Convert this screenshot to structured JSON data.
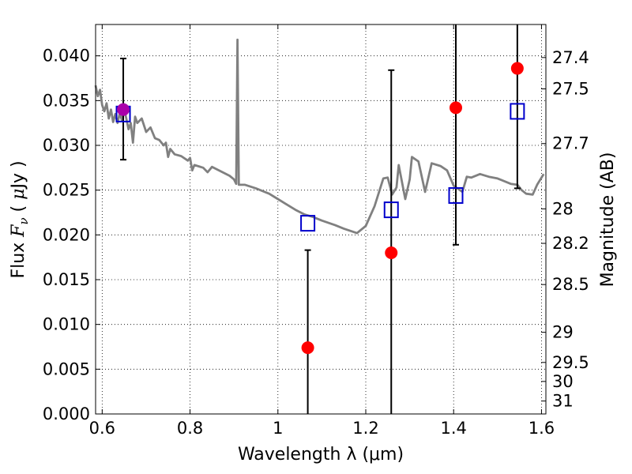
{
  "chart_data": {
    "type": "scatter",
    "xlabel": "Wavelength  λ (μm)",
    "ylabel": "Flux  F_ν  ( μJy )",
    "ylabel_parts": {
      "pre": "Flux  ",
      "F": "F",
      "nu": "ν",
      "mid": "  ( ",
      "mu": "μ",
      "post": "Jy )"
    },
    "y2label": "Magnitude (AB)",
    "xlim": [
      0.585,
      1.61
    ],
    "ylim": [
      0.0,
      0.0435
    ],
    "grid": true,
    "x_ticks": [
      {
        "value": 0.6,
        "label": "0.6"
      },
      {
        "value": 0.8,
        "label": "0.8"
      },
      {
        "value": 1.0,
        "label": "1"
      },
      {
        "value": 1.2,
        "label": "1.2"
      },
      {
        "value": 1.4,
        "label": "1.4"
      },
      {
        "value": 1.6,
        "label": "1.6"
      }
    ],
    "y_ticks": [
      {
        "value": 0.0,
        "label": "0.000"
      },
      {
        "value": 0.005,
        "label": "0.005"
      },
      {
        "value": 0.01,
        "label": "0.010"
      },
      {
        "value": 0.015,
        "label": "0.015"
      },
      {
        "value": 0.02,
        "label": "0.020"
      },
      {
        "value": 0.025,
        "label": "0.025"
      },
      {
        "value": 0.03,
        "label": "0.030"
      },
      {
        "value": 0.035,
        "label": "0.035"
      },
      {
        "value": 0.04,
        "label": "0.040"
      }
    ],
    "mag_ticks": [
      {
        "value": 27.4,
        "label": "27.4"
      },
      {
        "value": 27.5,
        "label": "27.5"
      },
      {
        "value": 27.7,
        "label": "27.7"
      },
      {
        "value": 28.0,
        "label": "28"
      },
      {
        "value": 28.2,
        "label": "28.2"
      },
      {
        "value": 28.5,
        "label": "28.5"
      },
      {
        "value": 29.0,
        "label": "29"
      },
      {
        "value": 29.5,
        "label": "29.5"
      },
      {
        "value": 30.0,
        "label": "30"
      },
      {
        "value": 31.0,
        "label": "31"
      }
    ],
    "mag_zeropoint": 23.9,
    "colors": {
      "model": "#808080",
      "observed": "#ff0000",
      "model_band": "#0000cc",
      "detection": "#aa00aa",
      "error_bar": "#000000"
    },
    "series": [
      {
        "kind": "line",
        "points": [
          [
            0.585,
            0.0367
          ],
          [
            0.59,
            0.0355
          ],
          [
            0.595,
            0.0362
          ],
          [
            0.6,
            0.0345
          ],
          [
            0.605,
            0.0338
          ],
          [
            0.61,
            0.0347
          ],
          [
            0.615,
            0.033
          ],
          [
            0.62,
            0.034
          ],
          [
            0.625,
            0.0326
          ],
          [
            0.63,
            0.0335
          ],
          [
            0.635,
            0.0325
          ],
          [
            0.64,
            0.0336
          ],
          [
            0.645,
            0.0328
          ],
          [
            0.65,
            0.0341
          ],
          [
            0.655,
            0.033
          ],
          [
            0.66,
            0.0318
          ],
          [
            0.665,
            0.0325
          ],
          [
            0.67,
            0.0303
          ],
          [
            0.675,
            0.0332
          ],
          [
            0.68,
            0.0325
          ],
          [
            0.69,
            0.033
          ],
          [
            0.7,
            0.0315
          ],
          [
            0.71,
            0.032
          ],
          [
            0.72,
            0.0308
          ],
          [
            0.73,
            0.0306
          ],
          [
            0.74,
            0.03
          ],
          [
            0.745,
            0.0303
          ],
          [
            0.75,
            0.0287
          ],
          [
            0.755,
            0.0296
          ],
          [
            0.765,
            0.029
          ],
          [
            0.78,
            0.0288
          ],
          [
            0.795,
            0.0283
          ],
          [
            0.8,
            0.0286
          ],
          [
            0.805,
            0.0272
          ],
          [
            0.81,
            0.0278
          ],
          [
            0.83,
            0.0275
          ],
          [
            0.84,
            0.027
          ],
          [
            0.85,
            0.0276
          ],
          [
            0.87,
            0.0271
          ],
          [
            0.89,
            0.0266
          ],
          [
            0.9,
            0.0262
          ],
          [
            0.905,
            0.0257
          ],
          [
            0.908,
            0.0418
          ],
          [
            0.911,
            0.0256
          ],
          [
            0.925,
            0.0256
          ],
          [
            0.95,
            0.0252
          ],
          [
            0.98,
            0.0246
          ],
          [
            1.0,
            0.024
          ],
          [
            1.02,
            0.0234
          ],
          [
            1.04,
            0.0228
          ],
          [
            1.06,
            0.0223
          ],
          [
            1.08,
            0.022
          ],
          [
            1.1,
            0.0216
          ],
          [
            1.13,
            0.0211
          ],
          [
            1.15,
            0.0207
          ],
          [
            1.18,
            0.0202
          ],
          [
            1.2,
            0.021
          ],
          [
            1.22,
            0.0232
          ],
          [
            1.24,
            0.0263
          ],
          [
            1.25,
            0.0264
          ],
          [
            1.26,
            0.0245
          ],
          [
            1.27,
            0.0253
          ],
          [
            1.275,
            0.0278
          ],
          [
            1.29,
            0.024
          ],
          [
            1.3,
            0.0262
          ],
          [
            1.305,
            0.0287
          ],
          [
            1.32,
            0.0282
          ],
          [
            1.335,
            0.0248
          ],
          [
            1.35,
            0.028
          ],
          [
            1.37,
            0.0277
          ],
          [
            1.385,
            0.0272
          ],
          [
            1.4,
            0.0255
          ],
          [
            1.42,
            0.0248
          ],
          [
            1.43,
            0.0265
          ],
          [
            1.44,
            0.0264
          ],
          [
            1.46,
            0.0268
          ],
          [
            1.48,
            0.0265
          ],
          [
            1.5,
            0.0263
          ],
          [
            1.53,
            0.0257
          ],
          [
            1.545,
            0.0256
          ],
          [
            1.555,
            0.025
          ],
          [
            1.565,
            0.0246
          ],
          [
            1.58,
            0.0245
          ],
          [
            1.59,
            0.0256
          ],
          [
            1.605,
            0.0268
          ]
        ]
      },
      {
        "kind": "errorbar",
        "marker": "circle",
        "points": [
          {
            "x": 0.648,
            "y": 0.034,
            "ylo": 0.0284,
            "yhi": 0.0397,
            "color": "detection"
          },
          {
            "x": 1.068,
            "y": 0.0074,
            "ylo": 0.0,
            "yhi": 0.0183,
            "color": "observed"
          },
          {
            "x": 1.258,
            "y": 0.018,
            "ylo": 0.0,
            "yhi": 0.0384,
            "color": "observed"
          },
          {
            "x": 1.405,
            "y": 0.0342,
            "ylo": 0.0189,
            "yhi": 0.0435,
            "color": "observed"
          },
          {
            "x": 1.545,
            "y": 0.0386,
            "ylo": 0.0252,
            "yhi": 0.0435,
            "color": "observed"
          }
        ]
      },
      {
        "kind": "scatter",
        "marker": "open-square",
        "points": [
          [
            0.648,
            0.0335
          ],
          [
            1.068,
            0.0213
          ],
          [
            1.258,
            0.0228
          ],
          [
            1.405,
            0.0244
          ],
          [
            1.545,
            0.0338
          ]
        ]
      }
    ]
  }
}
